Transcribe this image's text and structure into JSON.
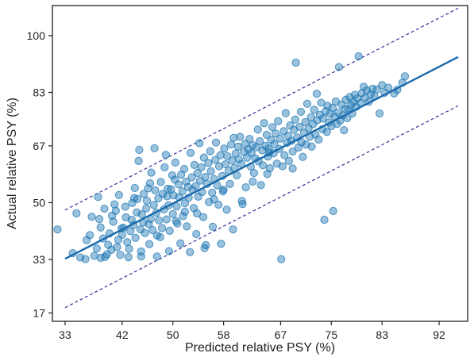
{
  "chart_data": {
    "type": "scatter",
    "title": "",
    "xlabel": "Predicted relative PSY (%)",
    "ylabel": "Actual relative PSY (%)",
    "xlim": [
      31,
      96.5
    ],
    "ylim": [
      14.5,
      109
    ],
    "x_ticks": [
      33,
      42,
      50,
      58,
      67,
      75,
      83,
      92
    ],
    "x_tick_labels": [
      "33",
      "42",
      "50",
      "58",
      "67",
      "75",
      "83",
      "92"
    ],
    "y_ticks": [
      17,
      33,
      50,
      67,
      83,
      100
    ],
    "y_tick_labels": [
      "17",
      "33",
      "50",
      "67",
      "83",
      "100"
    ],
    "grid": false,
    "colors": {
      "points": "#1f77b4",
      "fit_line": "#1a6aac",
      "bounds": "#3b2a9a",
      "axes": "#222222"
    },
    "points": [
      [
        31.8,
        42.0
      ],
      [
        34.8,
        46.8
      ],
      [
        35.4,
        33.6
      ],
      [
        36.2,
        33.1
      ],
      [
        36.4,
        38.8
      ],
      [
        37.2,
        45.8
      ],
      [
        37.6,
        34.1
      ],
      [
        38.0,
        36.3
      ],
      [
        38.2,
        51.7
      ],
      [
        38.4,
        45.1
      ],
      [
        38.6,
        33.5
      ],
      [
        39.0,
        39.3
      ],
      [
        39.2,
        48.2
      ],
      [
        39.3,
        33.8
      ],
      [
        39.6,
        34.5
      ],
      [
        39.8,
        37.4
      ],
      [
        40.0,
        40.8
      ],
      [
        40.3,
        35.9
      ],
      [
        40.6,
        44.3
      ],
      [
        40.8,
        49.5
      ],
      [
        41.0,
        47.6
      ],
      [
        41.2,
        36.7
      ],
      [
        41.4,
        38.9
      ],
      [
        41.5,
        52.3
      ],
      [
        41.7,
        34.4
      ],
      [
        42.0,
        40.4
      ],
      [
        42.2,
        42.5
      ],
      [
        42.5,
        48.8
      ],
      [
        42.6,
        45.6
      ],
      [
        42.8,
        38.2
      ],
      [
        43.0,
        33.7
      ],
      [
        43.1,
        36.2
      ],
      [
        43.3,
        41.5
      ],
      [
        43.5,
        44.9
      ],
      [
        43.6,
        49.9
      ],
      [
        43.8,
        43.3
      ],
      [
        44.0,
        54.4
      ],
      [
        44.1,
        39.5
      ],
      [
        44.3,
        47.1
      ],
      [
        44.4,
        51.1
      ],
      [
        44.6,
        62.5
      ],
      [
        44.7,
        65.8
      ],
      [
        44.9,
        42.0
      ],
      [
        45.0,
        35.4
      ],
      [
        45.1,
        46.5
      ],
      [
        45.3,
        44.1
      ],
      [
        45.4,
        52.6
      ],
      [
        45.6,
        40.9
      ],
      [
        45.8,
        48.3
      ],
      [
        45.9,
        50.6
      ],
      [
        46.1,
        54.3
      ],
      [
        46.2,
        43.6
      ],
      [
        46.3,
        37.6
      ],
      [
        46.5,
        45.1
      ],
      [
        46.6,
        59.0
      ],
      [
        46.8,
        41.8
      ],
      [
        47.0,
        49.3
      ],
      [
        47.1,
        66.3
      ],
      [
        47.2,
        53.7
      ],
      [
        47.4,
        47.0
      ],
      [
        47.5,
        33.9
      ],
      [
        47.7,
        51.3
      ],
      [
        47.8,
        44.7
      ],
      [
        48.0,
        39.7
      ],
      [
        48.1,
        56.2
      ],
      [
        48.3,
        42.4
      ],
      [
        48.4,
        52.6
      ],
      [
        48.6,
        48.0
      ],
      [
        48.7,
        60.6
      ],
      [
        48.9,
        64.3
      ],
      [
        49.0,
        45.0
      ],
      [
        49.1,
        51.9
      ],
      [
        49.3,
        49.2
      ],
      [
        49.4,
        35.5
      ],
      [
        49.5,
        41.6
      ],
      [
        49.7,
        54.0
      ],
      [
        49.9,
        58.2
      ],
      [
        50.0,
        46.6
      ],
      [
        50.1,
        52.2
      ],
      [
        50.3,
        56.9
      ],
      [
        50.4,
        62.0
      ],
      [
        50.6,
        48.9
      ],
      [
        50.7,
        43.8
      ],
      [
        50.9,
        55.5
      ],
      [
        51.0,
        51.6
      ],
      [
        51.2,
        37.8
      ],
      [
        51.3,
        58.4
      ],
      [
        51.5,
        53.4
      ],
      [
        51.6,
        46.0
      ],
      [
        51.8,
        60.1
      ],
      [
        51.9,
        49.8
      ],
      [
        52.1,
        56.3
      ],
      [
        52.2,
        42.9
      ],
      [
        52.4,
        54.7
      ],
      [
        52.5,
        51.5
      ],
      [
        52.7,
        35.2
      ],
      [
        52.8,
        64.9
      ],
      [
        53.0,
        57.6
      ],
      [
        53.1,
        53.8
      ],
      [
        53.3,
        48.4
      ],
      [
        53.4,
        61.3
      ],
      [
        53.6,
        55.0
      ],
      [
        53.7,
        40.6
      ],
      [
        53.9,
        58.9
      ],
      [
        54.0,
        51.8
      ],
      [
        54.2,
        67.8
      ],
      [
        54.3,
        56.6
      ],
      [
        54.5,
        60.6
      ],
      [
        54.6,
        53.2
      ],
      [
        54.8,
        45.7
      ],
      [
        54.9,
        63.5
      ],
      [
        55.1,
        57.7
      ],
      [
        55.2,
        37.3
      ],
      [
        55.4,
        55.6
      ],
      [
        55.6,
        61.9
      ],
      [
        55.7,
        50.2
      ],
      [
        55.9,
        65.4
      ],
      [
        56.0,
        59.4
      ],
      [
        56.2,
        53.0
      ],
      [
        56.3,
        42.8
      ],
      [
        56.5,
        57.1
      ],
      [
        56.7,
        62.8
      ],
      [
        56.8,
        68.0
      ],
      [
        57.0,
        55.2
      ],
      [
        57.2,
        49.4
      ],
      [
        57.3,
        60.9
      ],
      [
        57.5,
        64.2
      ],
      [
        57.6,
        37.7
      ],
      [
        57.8,
        58.0
      ],
      [
        58.0,
        53.9
      ],
      [
        58.1,
        66.2
      ],
      [
        58.3,
        61.5
      ],
      [
        58.5,
        47.9
      ],
      [
        58.6,
        63.9
      ],
      [
        58.8,
        59.6
      ],
      [
        59.0,
        55.6
      ],
      [
        59.2,
        67.4
      ],
      [
        59.4,
        62.6
      ],
      [
        59.5,
        42.0
      ],
      [
        59.7,
        60.4
      ],
      [
        59.9,
        64.7
      ],
      [
        60.1,
        58.2
      ],
      [
        60.3,
        66.8
      ],
      [
        60.4,
        63.0
      ],
      [
        60.6,
        69.7
      ],
      [
        60.8,
        61.6
      ],
      [
        61.0,
        49.6
      ],
      [
        61.2,
        65.2
      ],
      [
        61.4,
        67.6
      ],
      [
        61.5,
        54.6
      ],
      [
        61.7,
        63.5
      ],
      [
        61.9,
        66.0
      ],
      [
        62.1,
        69.1
      ],
      [
        62.3,
        60.8
      ],
      [
        62.4,
        64.9
      ],
      [
        62.6,
        67.2
      ],
      [
        62.8,
        58.9
      ],
      [
        63.0,
        63.3
      ],
      [
        63.2,
        66.6
      ],
      [
        63.4,
        71.9
      ],
      [
        63.5,
        62.4
      ],
      [
        63.7,
        68.4
      ],
      [
        63.9,
        55.3
      ],
      [
        64.1,
        65.7
      ],
      [
        64.2,
        61.2
      ],
      [
        64.4,
        73.8
      ],
      [
        64.6,
        67.0
      ],
      [
        64.8,
        70.3
      ],
      [
        65.0,
        63.8
      ],
      [
        65.1,
        66.2
      ],
      [
        65.3,
        60.3
      ],
      [
        65.5,
        68.8
      ],
      [
        65.7,
        72.6
      ],
      [
        65.9,
        64.8
      ],
      [
        66.0,
        67.5
      ],
      [
        66.2,
        70.7
      ],
      [
        66.4,
        61.7
      ],
      [
        66.6,
        74.4
      ],
      [
        66.8,
        66.1
      ],
      [
        66.9,
        69.2
      ],
      [
        67.1,
        33.1
      ],
      [
        67.3,
        60.9
      ],
      [
        67.5,
        71.4
      ],
      [
        67.6,
        64.2
      ],
      [
        67.8,
        76.8
      ],
      [
        68.0,
        67.9
      ],
      [
        68.2,
        70.0
      ],
      [
        68.3,
        62.5
      ],
      [
        68.5,
        73.1
      ],
      [
        68.7,
        68.5
      ],
      [
        68.9,
        65.3
      ],
      [
        69.1,
        71.8
      ],
      [
        69.3,
        74.9
      ],
      [
        69.4,
        91.9
      ],
      [
        69.6,
        69.5
      ],
      [
        69.8,
        66.5
      ],
      [
        70.0,
        72.7
      ],
      [
        70.2,
        77.2
      ],
      [
        70.3,
        68.1
      ],
      [
        70.5,
        63.7
      ],
      [
        70.7,
        70.9
      ],
      [
        70.9,
        74.1
      ],
      [
        71.0,
        67.4
      ],
      [
        71.2,
        79.6
      ],
      [
        71.4,
        72.3
      ],
      [
        71.6,
        69.7
      ],
      [
        71.8,
        75.6
      ],
      [
        71.9,
        66.8
      ],
      [
        72.1,
        73.5
      ],
      [
        72.3,
        77.8
      ],
      [
        72.5,
        70.4
      ],
      [
        72.7,
        82.6
      ],
      [
        72.8,
        74.7
      ],
      [
        73.0,
        68.9
      ],
      [
        73.2,
        76.3
      ],
      [
        73.4,
        79.9
      ],
      [
        73.6,
        72.0
      ],
      [
        73.7,
        75.2
      ],
      [
        73.9,
        44.9
      ],
      [
        74.1,
        77.4
      ],
      [
        74.3,
        71.2
      ],
      [
        74.4,
        79.0
      ],
      [
        74.6,
        74.0
      ],
      [
        74.8,
        76.6
      ],
      [
        75.0,
        72.9
      ],
      [
        75.2,
        78.4
      ],
      [
        75.3,
        47.5
      ],
      [
        75.5,
        75.8
      ],
      [
        75.7,
        80.3
      ],
      [
        75.9,
        73.6
      ],
      [
        76.1,
        77.0
      ],
      [
        76.2,
        90.6
      ],
      [
        76.4,
        74.6
      ],
      [
        76.6,
        79.4
      ],
      [
        76.8,
        76.1
      ],
      [
        77.0,
        71.7
      ],
      [
        77.2,
        78.1
      ],
      [
        77.3,
        80.8
      ],
      [
        77.5,
        75.3
      ],
      [
        77.7,
        77.9
      ],
      [
        77.9,
        81.6
      ],
      [
        78.1,
        79.2
      ],
      [
        78.3,
        76.7
      ],
      [
        78.5,
        80.1
      ],
      [
        78.7,
        82.3
      ],
      [
        78.9,
        78.7
      ],
      [
        79.1,
        81.2
      ],
      [
        79.3,
        93.8
      ],
      [
        79.6,
        79.8
      ],
      [
        79.8,
        82.8
      ],
      [
        80.1,
        84.7
      ],
      [
        80.3,
        81.4
      ],
      [
        80.6,
        83.6
      ],
      [
        80.9,
        80.2
      ],
      [
        81.2,
        82.4
      ],
      [
        81.5,
        84.1
      ],
      [
        81.8,
        81.9
      ],
      [
        82.2,
        83.9
      ],
      [
        82.6,
        76.7
      ],
      [
        83.0,
        85.2
      ],
      [
        83.4,
        82.9
      ],
      [
        84.0,
        84.4
      ],
      [
        84.9,
        82.7
      ],
      [
        85.4,
        83.8
      ],
      [
        86.2,
        85.9
      ],
      [
        86.6,
        87.8
      ],
      [
        34.2,
        34.9
      ],
      [
        36.9,
        40.3
      ],
      [
        38.6,
        42.6
      ],
      [
        40.4,
        46.1
      ],
      [
        43.9,
        51.4
      ],
      [
        46.4,
        55.8
      ],
      [
        49.2,
        54.2
      ],
      [
        51.9,
        47.3
      ],
      [
        53.8,
        46.8
      ],
      [
        56.5,
        51.0
      ],
      [
        59.6,
        69.4
      ],
      [
        62.6,
        56.3
      ],
      [
        64.9,
        58.6
      ],
      [
        68.9,
        60.2
      ],
      [
        45.0,
        33.9
      ],
      [
        41.9,
        42.3
      ],
      [
        47.5,
        40.2
      ],
      [
        50.5,
        44.5
      ],
      [
        55.0,
        36.4
      ],
      [
        57.9,
        53.4
      ],
      [
        60.9,
        50.5
      ],
      [
        65.2,
        65.0
      ]
    ],
    "fit_line": {
      "x": [
        33,
        95
      ],
      "y": [
        33.2,
        93.6
      ]
    },
    "upper_bound": {
      "x": [
        33,
        95
      ],
      "y": [
        47.8,
        108.2
      ]
    },
    "lower_bound": {
      "x": [
        33,
        95
      ],
      "y": [
        18.6,
        79.0
      ]
    }
  }
}
